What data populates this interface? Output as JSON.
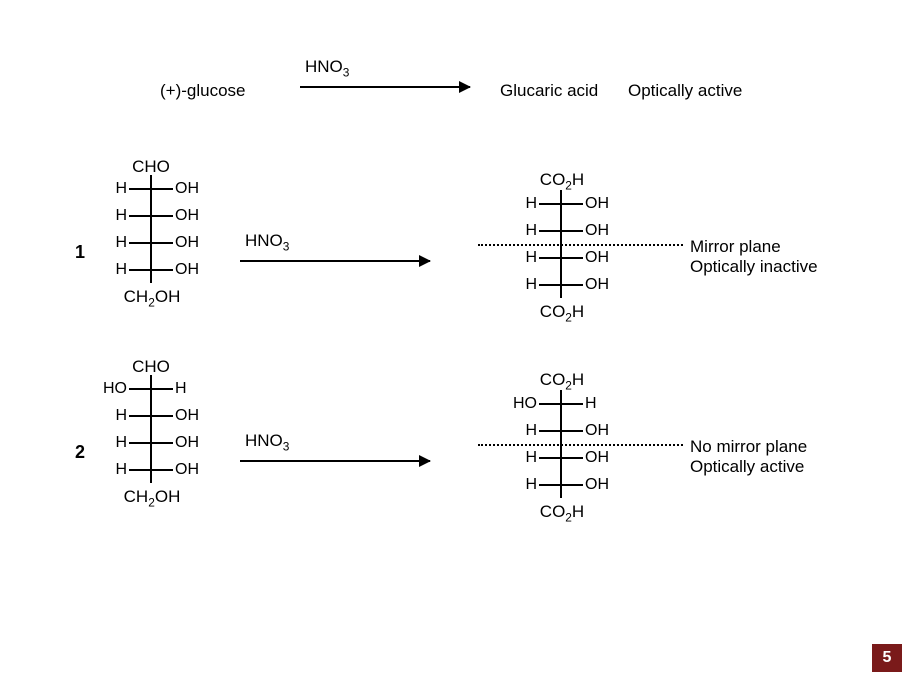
{
  "page_number": "5",
  "colors": {
    "text": "#000000",
    "bg": "#ffffff",
    "accent": "#7a1a1a"
  },
  "top_reaction": {
    "reactant": "(+)-glucose",
    "reagent_html": "HNO<span class='sub'>3</span>",
    "product": "Glucaric acid",
    "note": "Optically active"
  },
  "rows": [
    {
      "label": "1",
      "reagent_html": "HNO<span class='sub'>3</span>",
      "note_line1": "Mirror plane",
      "note_line2": "Optically inactive",
      "reactant": {
        "top": "CHO",
        "bottom_html": "CH<span class='sub'>2</span>OH",
        "centers": [
          {
            "left": "H",
            "right": "OH"
          },
          {
            "left": "H",
            "right": "OH"
          },
          {
            "left": "H",
            "right": "OH"
          },
          {
            "left": "H",
            "right": "OH"
          }
        ]
      },
      "product": {
        "top_html": "CO<span class='sub'>2</span>H",
        "bottom_html": "CO<span class='sub'>2</span>H",
        "centers": [
          {
            "left": "H",
            "right": "OH"
          },
          {
            "left": "H",
            "right": "OH"
          },
          {
            "left": "H",
            "right": "OH"
          },
          {
            "left": "H",
            "right": "OH"
          }
        ]
      }
    },
    {
      "label": "2",
      "reagent_html": "HNO<span class='sub'>3</span>",
      "note_line1": "No mirror plane",
      "note_line2": "Optically active",
      "reactant": {
        "top": "CHO",
        "bottom_html": "CH<span class='sub'>2</span>OH",
        "centers": [
          {
            "left": "HO",
            "right": "H"
          },
          {
            "left": "H",
            "right": "OH"
          },
          {
            "left": "H",
            "right": "OH"
          },
          {
            "left": "H",
            "right": "OH"
          }
        ]
      },
      "product": {
        "top_html": "CO<span class='sub'>2</span>H",
        "bottom_html": "CO<span class='sub'>2</span>H",
        "centers": [
          {
            "left": "HO",
            "right": "H"
          },
          {
            "left": "H",
            "right": "OH"
          },
          {
            "left": "H",
            "right": "OH"
          },
          {
            "left": "H",
            "right": "OH"
          }
        ]
      }
    }
  ],
  "layout": {
    "fischer_backbone_height": 108,
    "fischer_row_spacing": 27
  }
}
